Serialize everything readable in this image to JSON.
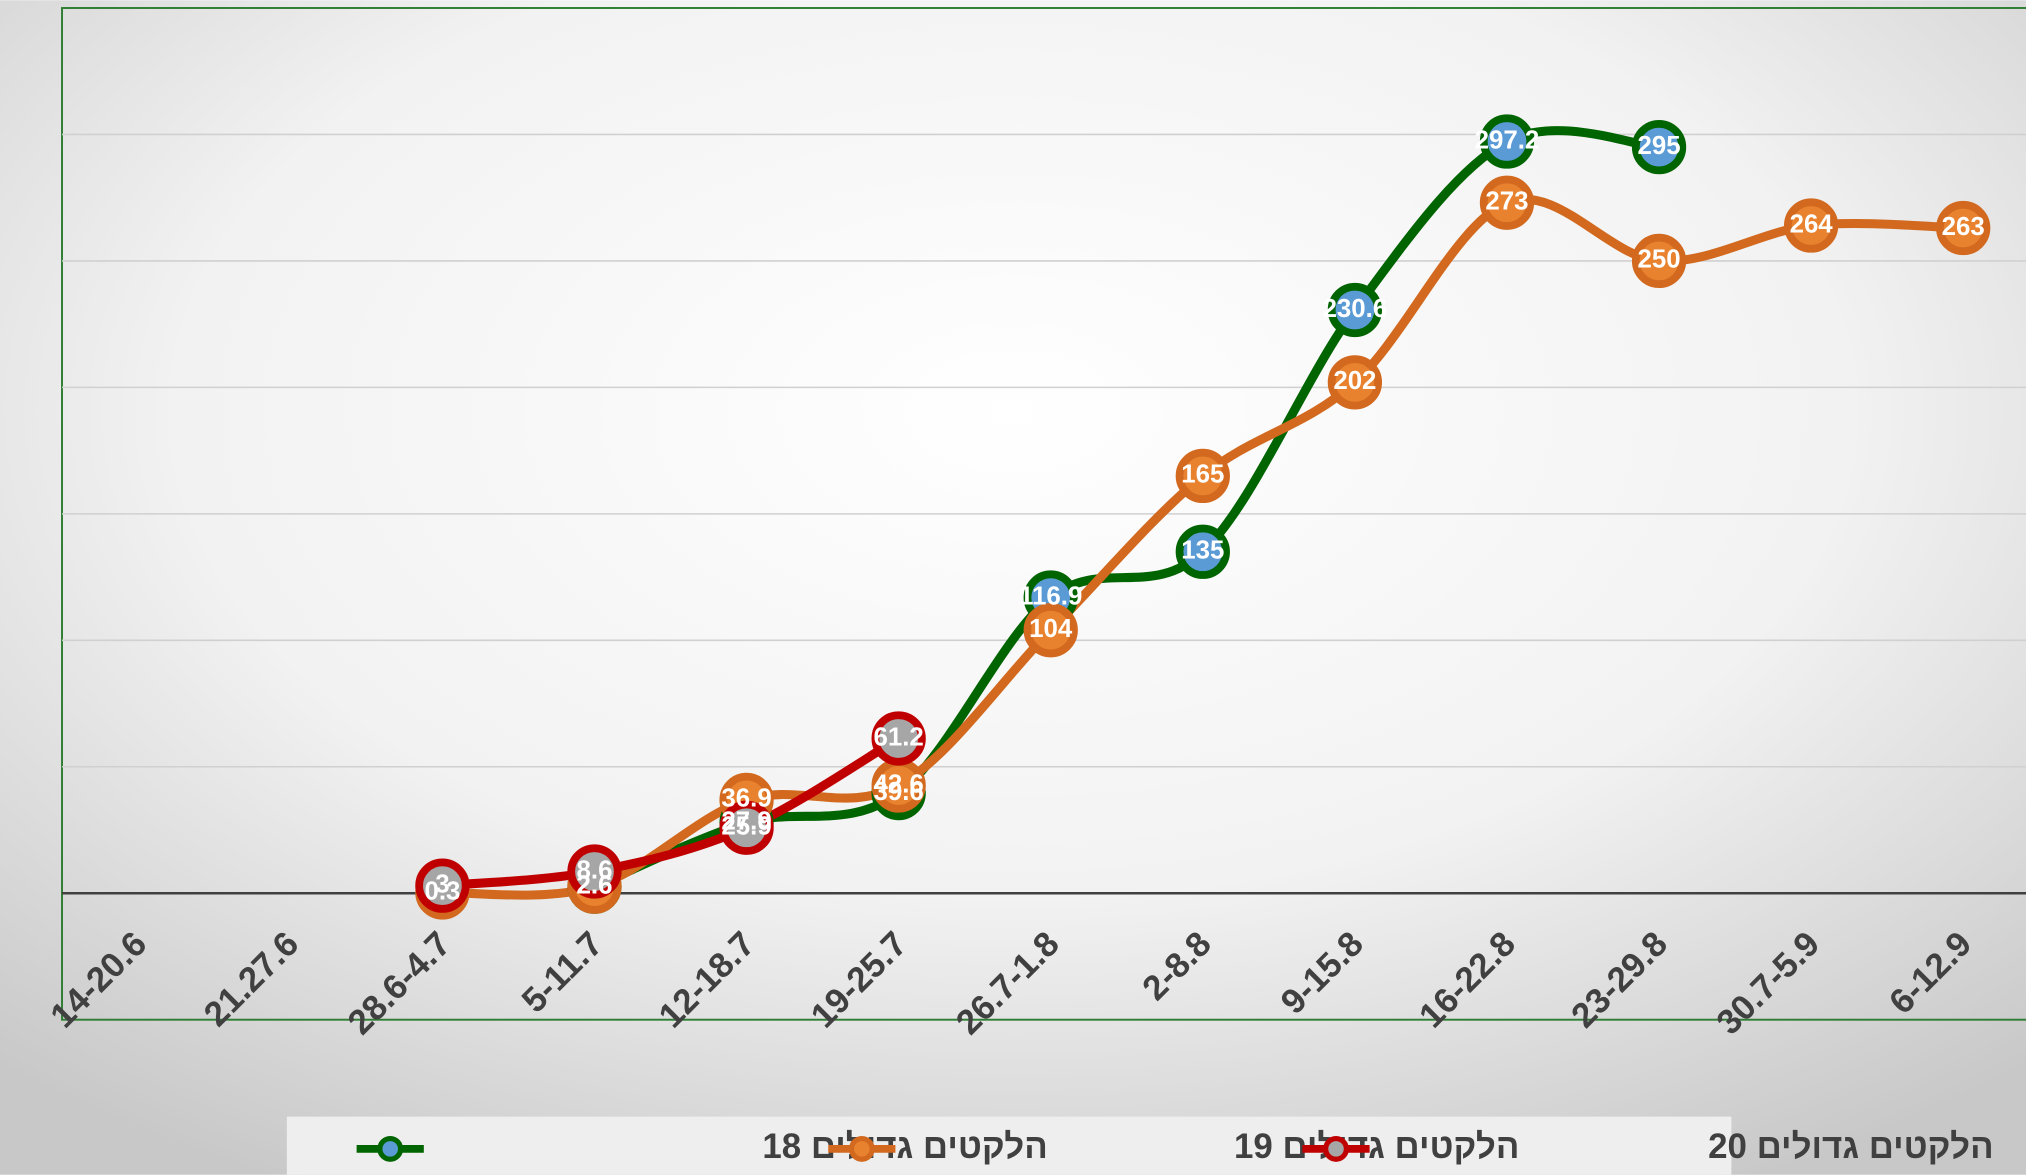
{
  "chart_data": {
    "type": "line",
    "categories": [
      "14-20.6",
      "21.27.6",
      "28.6-4.7",
      "5-11.7",
      "12-18.7",
      "19-25.7",
      "26.7-1.8",
      "2-8.8",
      "9-15.8",
      "16-22.8",
      "23-29.8",
      "30.7-5.9",
      "6-12.9"
    ],
    "series": [
      {
        "name": "הלקטים גדולים 18",
        "color": "#006400",
        "marker_fill": "#5b9bd5",
        "values": [
          null,
          null,
          null,
          2.6,
          27.9,
          39.6,
          116.9,
          135,
          230.6,
          297.2,
          295,
          null,
          null
        ]
      },
      {
        "name": "הלקטים גדולים 19",
        "color": "#d2691e",
        "marker_fill": "#e8822e",
        "values": [
          null,
          null,
          0.3,
          2.6,
          36.9,
          42.6,
          104,
          165,
          202,
          273,
          250,
          264,
          263
        ]
      },
      {
        "name": "הלקטים גדולים 20",
        "color": "#c00000",
        "marker_fill": "#a6a6a6",
        "values": [
          null,
          null,
          3,
          8.6,
          25.9,
          61.2,
          null,
          null,
          null,
          null,
          null,
          null,
          null
        ]
      }
    ],
    "ylim": [
      -50,
      350
    ],
    "yticks": [
      0,
      50,
      100,
      150,
      200,
      250,
      300
    ],
    "grid": true,
    "legend": "bottom"
  }
}
